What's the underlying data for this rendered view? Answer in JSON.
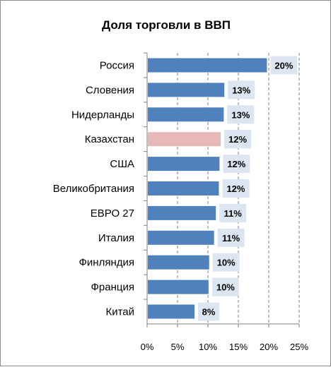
{
  "chart_data": {
    "type": "bar",
    "orientation": "horizontal",
    "title": "Доля торговли  в ВВП",
    "categories": [
      "Россия",
      "Словения",
      "Нидерланды",
      "Казахстан",
      "США",
      "Великобритания",
      "ЕВРО 27",
      "Италия",
      "Финляндия",
      "Франция",
      "Китай"
    ],
    "values": [
      19.7,
      12.7,
      12.6,
      12.1,
      11.9,
      11.8,
      11.3,
      11.0,
      10.2,
      10.1,
      7.8
    ],
    "data_labels": [
      "20%",
      "13%",
      "13%",
      "12%",
      "12%",
      "12%",
      "11%",
      "11%",
      "10%",
      "10%",
      "8%"
    ],
    "xlim": [
      0,
      25
    ],
    "x_ticks": [
      0,
      5,
      10,
      15,
      20,
      25
    ],
    "x_tick_labels": [
      "0%",
      "5%",
      "10%",
      "15%",
      "20%",
      "25%"
    ],
    "grid": "vertical-dashed",
    "legend": "none",
    "highlight_category": "Казахстан",
    "colors": {
      "bar": "#4f81bd",
      "highlight": "#e6b9b8",
      "label_box": "#dce6f2",
      "grid": "#808080",
      "axis": "#808080"
    }
  }
}
